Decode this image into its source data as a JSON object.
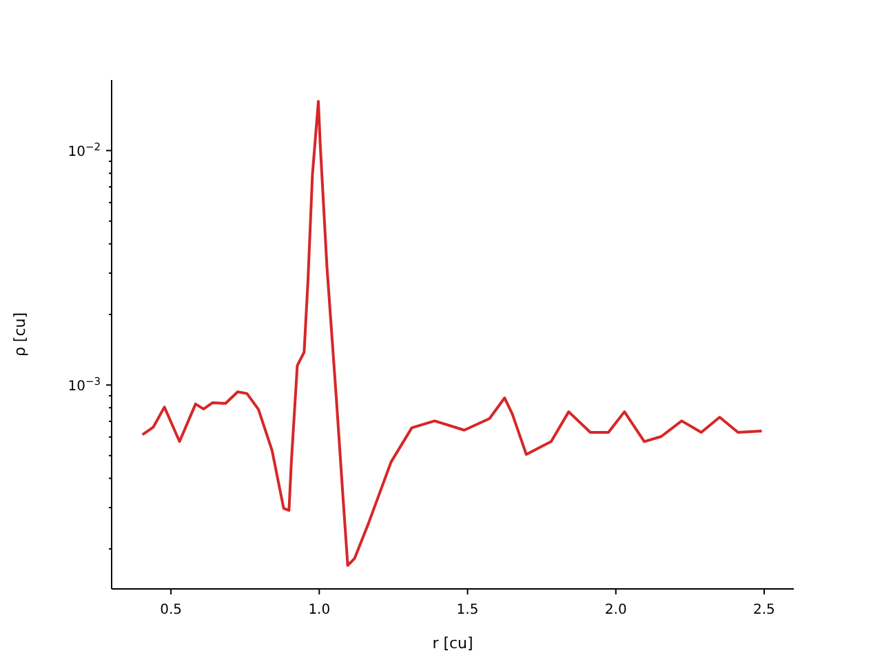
{
  "chart_data": {
    "type": "line",
    "xlabel": "r [cu]",
    "ylabel": "ρ [cu]",
    "log": "y",
    "grid": false,
    "marker": "none",
    "line_style": "solid",
    "xlim": [
      0.3,
      2.6
    ],
    "xticks": [
      0.5,
      {
        "value": 1,
        "label": "1.0"
      },
      1.5,
      {
        "value": 2,
        "label": "2.0"
      },
      2.5
    ],
    "ylim": [
      0.000135,
      0.02
    ],
    "yticks": [
      {
        "value": 0.0002,
        "label": null
      },
      {
        "value": 0.0003,
        "label": null
      },
      {
        "value": 0.0004,
        "label": null
      },
      {
        "value": 0.0005,
        "label": null
      },
      {
        "value": 0.0006,
        "label": null
      },
      {
        "value": 0.0007,
        "label": null
      },
      {
        "value": 0.0008,
        "label": null
      },
      {
        "value": 0.0009,
        "label": null
      },
      {
        "value": 0.001,
        "label": "10$^{−3}$"
      },
      {
        "value": 0.002,
        "label": null
      },
      {
        "value": 0.003,
        "label": null
      },
      {
        "value": 0.004,
        "label": null
      },
      {
        "value": 0.005,
        "label": null
      },
      {
        "value": 0.006,
        "label": null
      },
      {
        "value": 0.007,
        "label": null
      },
      {
        "value": 0.008,
        "label": null
      },
      {
        "value": 0.009,
        "label": null
      },
      {
        "value": 0.01,
        "label": "10$^{−2}$"
      }
    ],
    "x": [
      0.404,
      0.44,
      0.478,
      0.529,
      0.583,
      0.61,
      0.64,
      0.684,
      0.725,
      0.756,
      0.795,
      0.841,
      0.88,
      0.898,
      0.906,
      0.926,
      0.949,
      0.962,
      0.977,
      0.997,
      1.003,
      1.026,
      1.057,
      1.08,
      1.096,
      1.119,
      1.165,
      1.242,
      1.312,
      1.389,
      1.489,
      1.574,
      1.625,
      1.651,
      1.698,
      1.782,
      1.841,
      1.914,
      1.975,
      2.029,
      2.096,
      2.153,
      2.222,
      2.288,
      2.35,
      2.412,
      2.492
    ],
    "series": [
      {
        "color": "#d62728",
        "values": [
          0.000614,
          0.00066,
          0.000805,
          0.000574,
          0.00083,
          0.00079,
          0.00084,
          0.000835,
          0.000935,
          0.00092,
          0.000787,
          0.000525,
          0.000298,
          0.000292,
          0.00047,
          0.00121,
          0.00138,
          0.00279,
          0.00787,
          0.0162,
          0.0108,
          0.00319,
          0.0009,
          0.000334,
          0.00017,
          0.000182,
          0.000255,
          0.000469,
          0.000657,
          0.000703,
          0.000642,
          0.000719,
          0.000881,
          0.000752,
          0.000506,
          0.000574,
          0.000769,
          0.000628,
          0.000628,
          0.000769,
          0.000574,
          0.000603,
          0.000703,
          0.000628,
          0.000729,
          0.000628,
          0.000637
        ]
      }
    ]
  }
}
